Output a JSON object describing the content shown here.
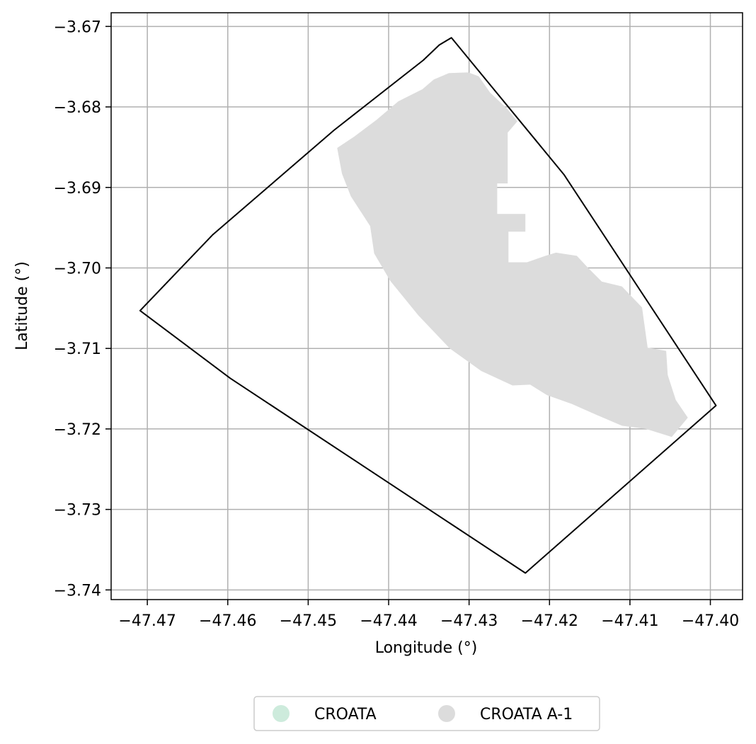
{
  "chart_data": {
    "type": "map",
    "xlabel": "Longitude (°)",
    "ylabel": "Latitude (°)",
    "xlim": [
      -47.4745,
      -47.396
    ],
    "ylim": [
      -3.7412,
      -3.6683
    ],
    "xticks": [
      -47.47,
      -47.46,
      -47.45,
      -47.44,
      -47.43,
      -47.42,
      -47.41,
      -47.4
    ],
    "xtick_labels": [
      "−47.47",
      "−47.46",
      "−47.45",
      "−47.44",
      "−47.43",
      "−47.42",
      "−47.41",
      "−47.40"
    ],
    "yticks": [
      -3.67,
      -3.68,
      -3.69,
      -3.7,
      -3.71,
      -3.72,
      -3.73,
      -3.74
    ],
    "ytick_labels": [
      "−3.67",
      "−3.68",
      "−3.69",
      "−3.70",
      "−3.71",
      "−3.72",
      "−3.73",
      "−3.74"
    ],
    "grid": true,
    "boundary": {
      "color": "#000000",
      "coordinates": [
        [
          -47.4322,
          -3.6714
        ],
        [
          -47.4337,
          -3.6723
        ],
        [
          -47.4357,
          -3.6742
        ],
        [
          -47.4468,
          -3.6829
        ],
        [
          -47.4619,
          -3.6959
        ],
        [
          -47.4709,
          -3.7053
        ],
        [
          -47.4597,
          -3.7137
        ],
        [
          -47.423,
          -3.7379
        ],
        [
          -47.3993,
          -3.7171
        ],
        [
          -47.4182,
          -3.6884
        ],
        [
          -47.4322,
          -3.6714
        ]
      ]
    },
    "series": [
      {
        "name": "CROATA",
        "color": "#cdebdc",
        "coordinates": []
      },
      {
        "name": "CROATA A-1",
        "color": "#dcdcdc",
        "coordinates": [
          [
            -47.4358,
            -3.6778
          ],
          [
            -47.4344,
            -3.6766
          ],
          [
            -47.4325,
            -3.6758
          ],
          [
            -47.4301,
            -3.6757
          ],
          [
            -47.4288,
            -3.6762
          ],
          [
            -47.4274,
            -3.6782
          ],
          [
            -47.4253,
            -3.6802
          ],
          [
            -47.424,
            -3.6818
          ],
          [
            -47.4252,
            -3.6832
          ],
          [
            -47.4252,
            -3.6895
          ],
          [
            -47.4265,
            -3.6895
          ],
          [
            -47.4265,
            -3.6933
          ],
          [
            -47.423,
            -3.6933
          ],
          [
            -47.423,
            -3.6955
          ],
          [
            -47.4251,
            -3.6955
          ],
          [
            -47.4251,
            -3.6993
          ],
          [
            -47.4228,
            -3.6993
          ],
          [
            -47.4205,
            -3.6985
          ],
          [
            -47.4192,
            -3.6981
          ],
          [
            -47.4166,
            -3.6985
          ],
          [
            -47.4153,
            -3.6999
          ],
          [
            -47.4135,
            -3.7017
          ],
          [
            -47.411,
            -3.7023
          ],
          [
            -47.4085,
            -3.7049
          ],
          [
            -47.4078,
            -3.7099
          ],
          [
            -47.4055,
            -3.7103
          ],
          [
            -47.4053,
            -3.7133
          ],
          [
            -47.4043,
            -3.7164
          ],
          [
            -47.4028,
            -3.7186
          ],
          [
            -47.4048,
            -3.721
          ],
          [
            -47.408,
            -3.72
          ],
          [
            -47.411,
            -3.7196
          ],
          [
            -47.4143,
            -3.7182
          ],
          [
            -47.4172,
            -3.7169
          ],
          [
            -47.4203,
            -3.7158
          ],
          [
            -47.4224,
            -3.7145
          ],
          [
            -47.4246,
            -3.7146
          ],
          [
            -47.4285,
            -3.7128
          ],
          [
            -47.4324,
            -3.71
          ],
          [
            -47.4363,
            -3.7059
          ],
          [
            -47.4398,
            -3.7016
          ],
          [
            -47.4418,
            -3.6982
          ],
          [
            -47.4423,
            -3.6948
          ],
          [
            -47.4447,
            -3.6911
          ],
          [
            -47.4458,
            -3.6883
          ],
          [
            -47.4464,
            -3.6851
          ],
          [
            -47.4443,
            -3.6837
          ],
          [
            -47.4415,
            -3.6816
          ],
          [
            -47.4388,
            -3.6793
          ],
          [
            -47.4358,
            -3.6778
          ]
        ]
      }
    ],
    "legend": {
      "position": "bottom-center",
      "entries": [
        "CROATA",
        "CROATA A-1"
      ]
    }
  }
}
